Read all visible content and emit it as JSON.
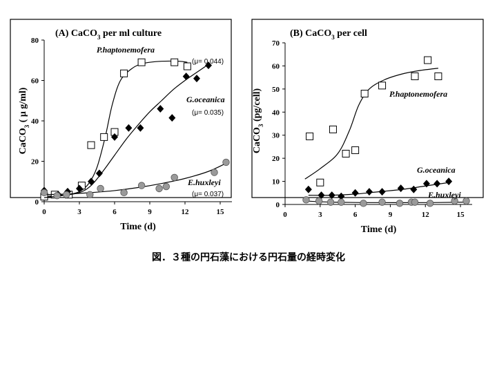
{
  "caption": "図．３種の円石藻における円石量の経時変化",
  "chart_data": [
    {
      "type": "scatter",
      "title_parts": [
        "(A) CaCO",
        "3",
        " per ml culture"
      ],
      "xlabel": "Time (d)",
      "ylabel_parts": [
        "CaCO",
        "3",
        " ( μ g/ml)"
      ],
      "xlim": [
        0,
        16
      ],
      "ylim": [
        0,
        80
      ],
      "xticks": [
        0,
        3,
        6,
        9,
        12,
        15
      ],
      "yticks": [
        0,
        20,
        40,
        60,
        80
      ],
      "series": [
        {
          "name": "P.haptonemofera",
          "mu_label": "(μ= 0.044)",
          "marker": "square-open",
          "points": [
            [
              0,
              2.5
            ],
            [
              0.9,
              3.5
            ],
            [
              2.1,
              3.5
            ],
            [
              3.2,
              8
            ],
            [
              4.0,
              28
            ],
            [
              5.1,
              32
            ],
            [
              6.0,
              34.5
            ],
            [
              6.8,
              63.5
            ],
            [
              8.3,
              69
            ],
            [
              11.1,
              69
            ],
            [
              12.2,
              67
            ]
          ],
          "curve": [
            [
              0,
              2.5
            ],
            [
              1,
              3
            ],
            [
              2,
              3.5
            ],
            [
              3,
              5
            ],
            [
              3.8,
              9
            ],
            [
              4.5,
              17
            ],
            [
              5.2,
              32
            ],
            [
              5.8,
              48
            ],
            [
              6.5,
              60
            ],
            [
              7.5,
              66
            ],
            [
              8.5,
              68.5
            ],
            [
              10,
              69.5
            ],
            [
              11.5,
              69.5
            ],
            [
              12.2,
              69
            ]
          ]
        },
        {
          "name": "G.oceanica",
          "mu_label": "(μ= 0.035)",
          "marker": "diamond-filled",
          "points": [
            [
              0,
              5.5
            ],
            [
              1.2,
              3.5
            ],
            [
              2.0,
              5
            ],
            [
              3.0,
              6.5
            ],
            [
              4.0,
              10
            ],
            [
              4.7,
              14
            ],
            [
              6.0,
              32
            ],
            [
              7.2,
              36.5
            ],
            [
              8.2,
              36.5
            ],
            [
              9.9,
              46
            ],
            [
              10.9,
              41.5
            ],
            [
              12.1,
              62
            ],
            [
              13.0,
              61
            ],
            [
              14.0,
              67.5
            ]
          ],
          "curve": [
            [
              0,
              2
            ],
            [
              1.5,
              3
            ],
            [
              3,
              4.5
            ],
            [
              4,
              8
            ],
            [
              5,
              15
            ],
            [
              6,
              23
            ],
            [
              7,
              31
            ],
            [
              8,
              38
            ],
            [
              9,
              44.5
            ],
            [
              10,
              50
            ],
            [
              11,
              55.5
            ],
            [
              12,
              60
            ],
            [
              13,
              64
            ],
            [
              14,
              68
            ]
          ]
        },
        {
          "name": "E.huxleyi",
          "mu_label": "(μ= 0.037)",
          "marker": "circle-gray",
          "points": [
            [
              0,
              4.5
            ],
            [
              1.1,
              3
            ],
            [
              1.9,
              3.5
            ],
            [
              3.9,
              3.5
            ],
            [
              4.8,
              6.5
            ],
            [
              6.8,
              4.5
            ],
            [
              8.3,
              8
            ],
            [
              9.8,
              6.5
            ],
            [
              10.4,
              7.5
            ],
            [
              11.1,
              12
            ],
            [
              14.5,
              14.5
            ],
            [
              15.5,
              19.5
            ]
          ],
          "curve": [
            [
              0,
              3.5
            ],
            [
              2,
              3.8
            ],
            [
              4,
              4.5
            ],
            [
              6,
              5.5
            ],
            [
              8,
              7
            ],
            [
              10,
              9
            ],
            [
              12,
              11.5
            ],
            [
              14,
              15
            ],
            [
              15.5,
              19
            ]
          ]
        }
      ]
    },
    {
      "type": "scatter",
      "title_parts": [
        "(B) CaCO",
        "3",
        " per cell"
      ],
      "xlabel": "Time (d)",
      "ylabel_parts": [
        "CaCO",
        "3",
        " (pg/cell)"
      ],
      "xlim": [
        0,
        16
      ],
      "ylim": [
        0,
        70
      ],
      "xticks": [
        0,
        3,
        6,
        9,
        12,
        15
      ],
      "yticks": [
        0,
        10,
        20,
        30,
        40,
        50,
        60,
        70
      ],
      "series": [
        {
          "name": "P.haptonemofera",
          "marker": "square-open",
          "points": [
            [
              2.1,
              29.5
            ],
            [
              3.0,
              9.5
            ],
            [
              4.1,
              32.5
            ],
            [
              5.2,
              22
            ],
            [
              6.0,
              23.5
            ],
            [
              6.8,
              48
            ],
            [
              8.3,
              51.5
            ],
            [
              11.1,
              55.5
            ],
            [
              12.2,
              62.5
            ],
            [
              13.1,
              55.5
            ]
          ],
          "curve": [
            [
              1.7,
              11
            ],
            [
              3,
              15.5
            ],
            [
              4.5,
              22
            ],
            [
              5.5,
              32
            ],
            [
              6.3,
              43
            ],
            [
              7.2,
              50
            ],
            [
              8.5,
              54
            ],
            [
              10,
              56.5
            ],
            [
              11.5,
              58
            ],
            [
              13.1,
              59
            ]
          ]
        },
        {
          "name": "G.oceanica",
          "marker": "diamond-filled",
          "points": [
            [
              2.0,
              6.5
            ],
            [
              3.1,
              4
            ],
            [
              4.0,
              4
            ],
            [
              4.8,
              3.5
            ],
            [
              6.0,
              5
            ],
            [
              7.2,
              5.5
            ],
            [
              8.3,
              5.5
            ],
            [
              9.9,
              7
            ],
            [
              11.0,
              6.5
            ],
            [
              12.1,
              9
            ],
            [
              13.0,
              9
            ],
            [
              14.0,
              10
            ]
          ],
          "curve": [
            [
              2.0,
              4
            ],
            [
              4,
              4
            ],
            [
              6,
              4.5
            ],
            [
              8,
              5.5
            ],
            [
              10,
              6.5
            ],
            [
              12,
              8
            ],
            [
              14,
              9.5
            ]
          ]
        },
        {
          "name": "E.huxleyi",
          "marker": "circle-gray",
          "points": [
            [
              1.8,
              2
            ],
            [
              2.9,
              1.5
            ],
            [
              3.9,
              1
            ],
            [
              4.8,
              1
            ],
            [
              6.7,
              0.5
            ],
            [
              8.3,
              1
            ],
            [
              9.8,
              0.5
            ],
            [
              10.8,
              1
            ],
            [
              11.1,
              1
            ],
            [
              12.4,
              0.5
            ],
            [
              14.5,
              1.5
            ],
            [
              15.5,
              1.5
            ]
          ],
          "curve": [
            [
              1.7,
              1.5
            ],
            [
              4,
              1
            ],
            [
              8,
              0.8
            ],
            [
              12,
              0.8
            ],
            [
              15.5,
              1
            ]
          ]
        }
      ]
    }
  ]
}
